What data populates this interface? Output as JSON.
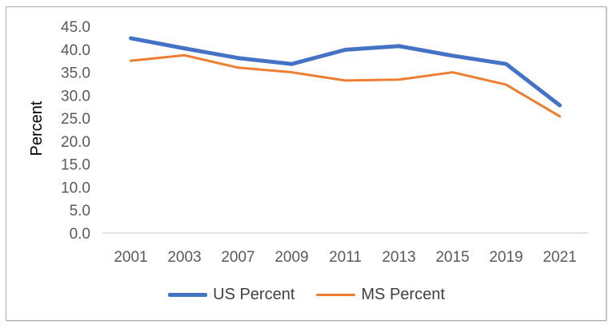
{
  "window": {
    "background": "#ffffff",
    "border_color": "#ababab"
  },
  "chart_data": {
    "type": "line",
    "title": "",
    "xlabel": "",
    "ylabel": "Percent",
    "categories": [
      "2001",
      "2003",
      "2007",
      "2009",
      "2011",
      "2013",
      "2015",
      "2019",
      "2021"
    ],
    "series": [
      {
        "name": "US Percent",
        "color": "#4472C4",
        "line_width": 5,
        "values": [
          42.4,
          40.2,
          38.1,
          36.8,
          39.9,
          40.7,
          38.6,
          36.8,
          27.8
        ]
      },
      {
        "name": "MS Percent",
        "color": "#ED7D31",
        "line_width": 3,
        "values": [
          37.5,
          38.7,
          36.0,
          35.0,
          33.2,
          33.4,
          35.0,
          32.3,
          25.4
        ]
      }
    ],
    "ylim": [
      0,
      45
    ],
    "ytick_step": 5,
    "ytick_labels": [
      "0.0",
      "5.0",
      "10.0",
      "15.0",
      "20.0",
      "25.0",
      "30.0",
      "35.0",
      "40.0",
      "45.0"
    ],
    "grid": false,
    "legend_position": "bottom-center",
    "axis_line_color": "#D9D9D9",
    "tick_label_color": "#595959",
    "legend_text_color": "#404040"
  }
}
